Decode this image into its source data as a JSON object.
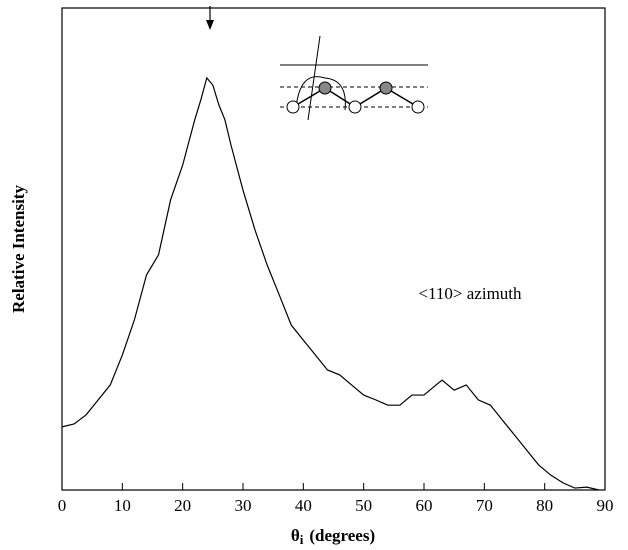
{
  "chart_data": {
    "type": "line",
    "ylabel": "Relative Intensity",
    "xlabel": {
      "symbol": "θ",
      "subscript": "i",
      "text": "(degrees)"
    },
    "annotation": "<110> azimuth",
    "color": "#000000",
    "x": [
      0,
      2,
      4,
      6,
      8,
      10,
      12,
      14,
      16,
      18,
      20,
      22,
      23,
      24,
      25,
      26,
      27,
      28,
      30,
      32,
      34,
      36,
      38,
      40,
      42,
      44,
      46,
      48,
      50,
      52,
      54,
      56,
      58,
      60,
      62,
      63,
      65,
      67,
      69,
      71,
      73,
      75,
      77,
      79,
      81,
      83,
      85,
      87,
      89
    ],
    "values": [
      13.1,
      13.7,
      15.6,
      18.7,
      21.8,
      28.0,
      35.3,
      44.6,
      48.8,
      60.2,
      67.4,
      76.8,
      80.9,
      85.5,
      84.0,
      79.9,
      76.8,
      71.6,
      62.2,
      53.9,
      46.7,
      40.5,
      34.2,
      31.1,
      28.0,
      24.9,
      23.9,
      21.8,
      19.7,
      18.7,
      17.6,
      17.6,
      19.7,
      19.7,
      21.8,
      22.8,
      20.7,
      21.8,
      18.7,
      17.6,
      14.5,
      11.4,
      8.3,
      5.2,
      3.1,
      1.5,
      0.4,
      0.6,
      0
    ],
    "xlim": [
      0,
      90
    ],
    "xticks": [
      0,
      10,
      20,
      30,
      40,
      50,
      60,
      70,
      80,
      90
    ],
    "ylim": [
      0,
      100
    ]
  }
}
